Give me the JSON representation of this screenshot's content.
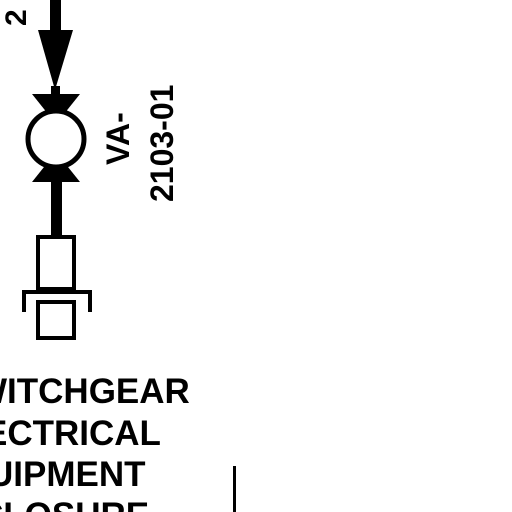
{
  "colors": {
    "ink": "#000000",
    "background": "#ffffff"
  },
  "valve": {
    "tag_prefix": "VA-",
    "tag_number": "2103-01"
  },
  "line_label": "2",
  "enclosure": {
    "lines": [
      "WITCHGEAR",
      "ECTRICAL",
      "UIPMENT",
      "CLOSURE"
    ]
  },
  "icons": [
    "flow-arrow-icon",
    "valve-icon",
    "instrument-connection-icon"
  ]
}
